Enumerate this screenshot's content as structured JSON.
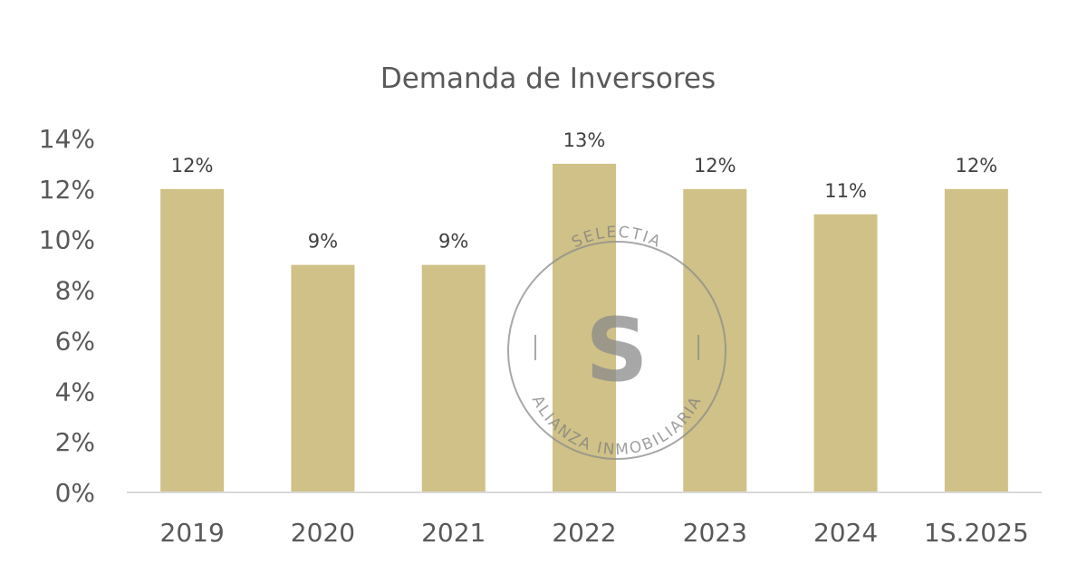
{
  "chart_data": {
    "type": "bar",
    "title": "Demanda de Inversores",
    "categories": [
      "2019",
      "2020",
      "2021",
      "2022",
      "2023",
      "2024",
      "1S.2025"
    ],
    "values": [
      12,
      9,
      9,
      13,
      12,
      11,
      12
    ],
    "data_labels": [
      "12%",
      "9%",
      "9%",
      "13%",
      "12%",
      "11%",
      "12%"
    ],
    "y_ticks": [
      "0%",
      "2%",
      "4%",
      "6%",
      "8%",
      "10%",
      "12%",
      "14%"
    ],
    "ylim": [
      0,
      14
    ],
    "grid": false,
    "bar_color": "#cfc187"
  },
  "watermark": {
    "top_text": "SELECTIA",
    "bottom_text": "ALIANZA INMOBILIARIA",
    "glyph": "S"
  }
}
